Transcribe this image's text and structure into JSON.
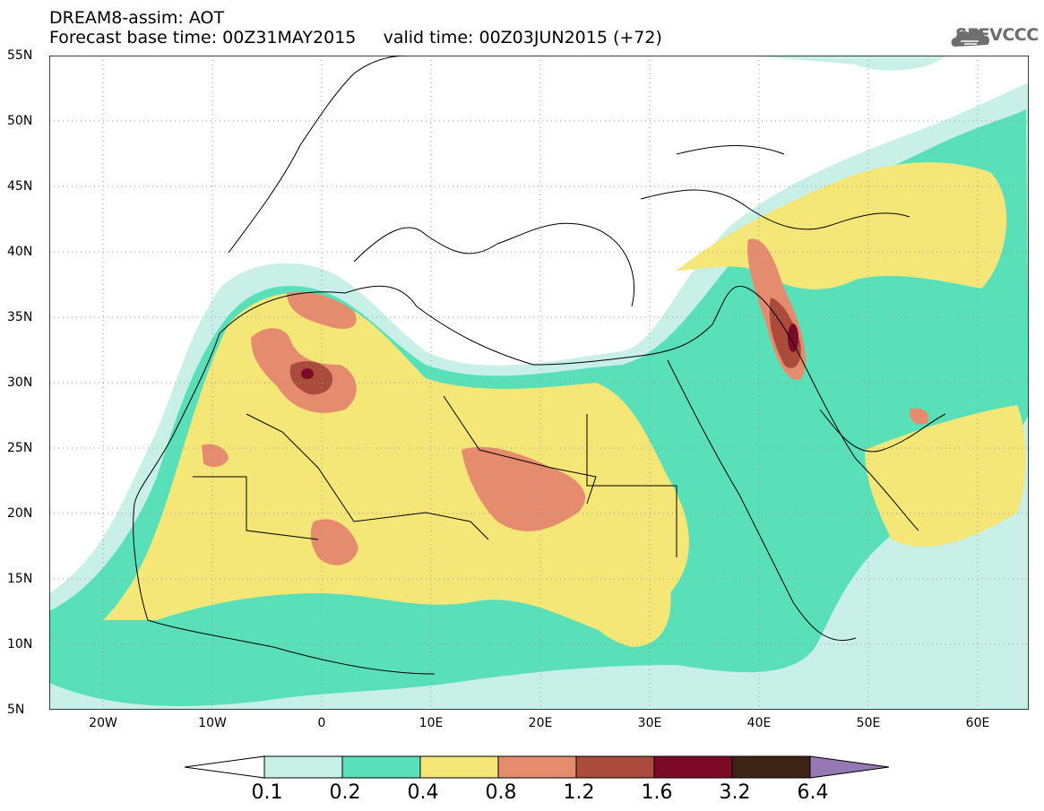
{
  "header": {
    "title": "DREAM8-assim: AOT",
    "subtitle": "Forecast base time: 00Z31MAY2015     valid time: 00Z03JUN2015 (+72)",
    "logo_text": "SEEVCCC"
  },
  "map": {
    "lat_labels": [
      "55N",
      "50N",
      "45N",
      "40N",
      "35N",
      "30N",
      "25N",
      "20N",
      "15N",
      "10N",
      "5N"
    ],
    "lon_labels": [
      "20W",
      "10W",
      "0",
      "10E",
      "20E",
      "30E",
      "40E",
      "50E",
      "60E"
    ],
    "extent": {
      "lon_min": -25,
      "lon_max": 65,
      "lat_min": 5,
      "lat_max": 55
    }
  },
  "legend": {
    "labels": [
      "0.1",
      "0.2",
      "0.4",
      "0.8",
      "1.2",
      "1.6",
      "3.2",
      "6.4"
    ],
    "colors": [
      "#ffffff",
      "#c8f0e6",
      "#5ae0b9",
      "#f5e678",
      "#e68c6e",
      "#aa4b3c",
      "#7d0a28",
      "#3c2314",
      "#9678b4"
    ]
  }
}
